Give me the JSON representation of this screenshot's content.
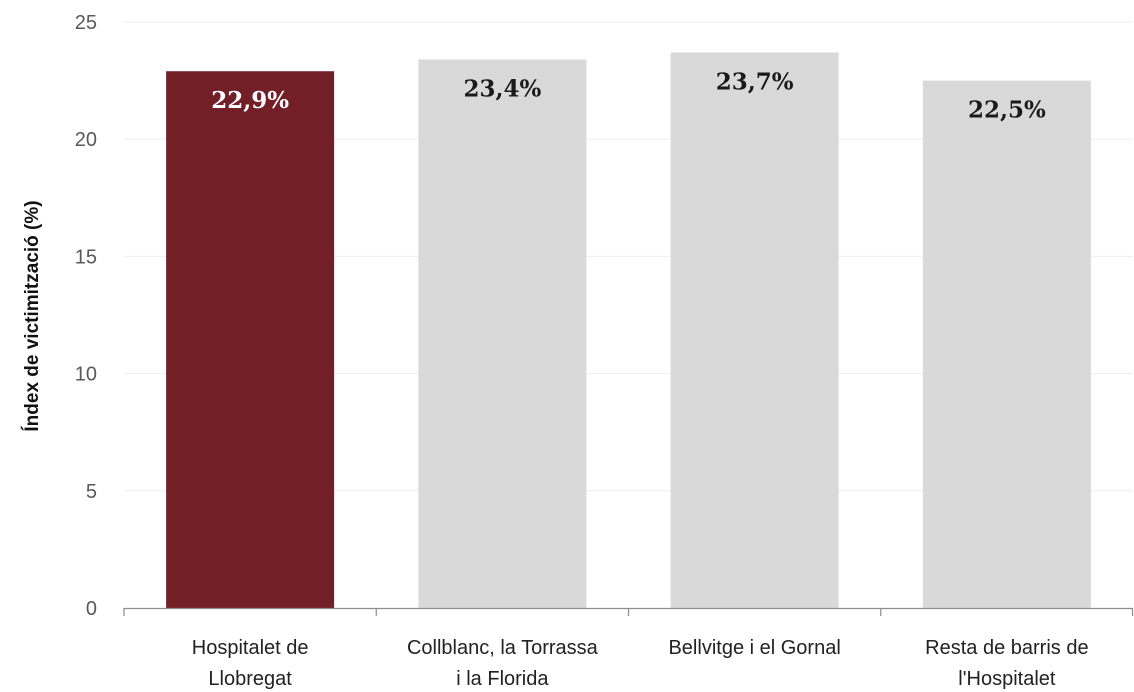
{
  "chart_data": {
    "type": "bar",
    "categories": [
      [
        "Hospitalet de",
        "Llobregat"
      ],
      [
        "Collblanc, la Torrassa",
        "i la Florida"
      ],
      [
        "Bellvitge i el Gornal"
      ],
      [
        "Resta de barris de",
        "l'Hospitalet"
      ]
    ],
    "values": [
      22.9,
      23.4,
      23.7,
      22.5
    ],
    "data_labels": [
      "22,9%",
      "23,4%",
      "23,7%",
      "22,5%"
    ],
    "ylabel": "Índex de victimització (%)",
    "ylim": [
      0,
      25
    ],
    "yticks": [
      0,
      5,
      10,
      15,
      20,
      25
    ],
    "grid": true,
    "legend": "none",
    "colors": {
      "highlight_bar": "#721F28",
      "bar": "#D9D9D9",
      "highlight_label": "#FFFFFF",
      "label": "#1A1A1A",
      "grid": "#EEEEEE",
      "axis": "#8C8C8C"
    }
  }
}
